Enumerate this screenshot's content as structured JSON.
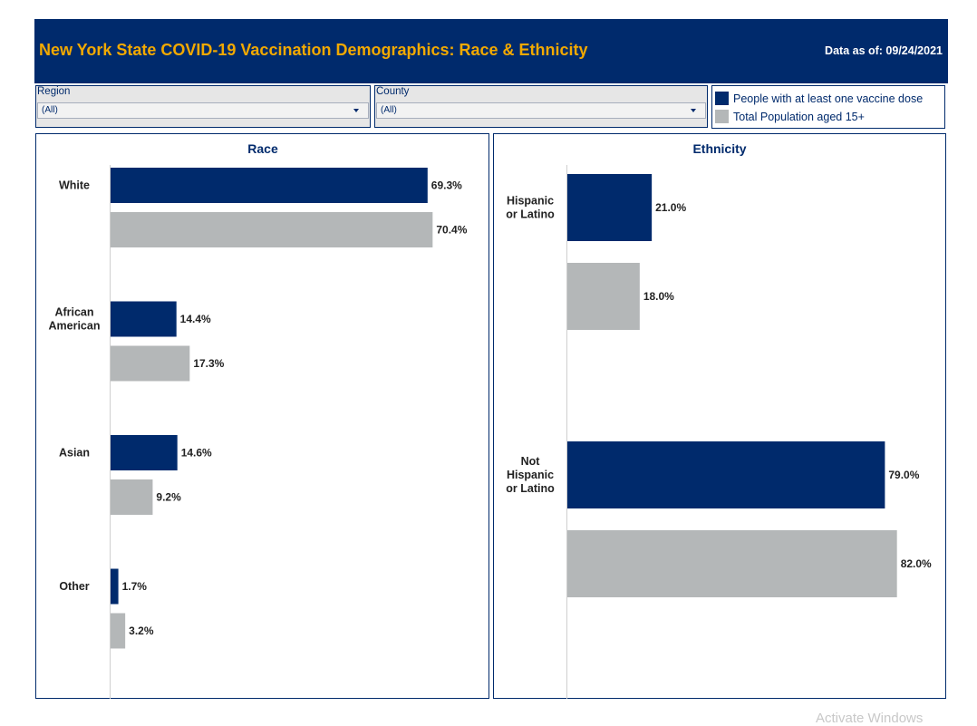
{
  "header": {
    "title": "New York State COVID-19 Vaccination Demographics: Race & Ethnicity",
    "date_text": "Data as of: 09/24/2021"
  },
  "filters": {
    "region": {
      "label": "Region",
      "value": "(All)"
    },
    "county": {
      "label": "County",
      "value": "(All)"
    }
  },
  "legend": [
    {
      "label": "People with at least one vaccine dose",
      "color": "#002a6c"
    },
    {
      "label": "Total Population aged 15+",
      "color": "#b4b7b8"
    }
  ],
  "colors": {
    "navy": "#002a6c",
    "gray": "#b4b7b8",
    "gold": "#f2a900"
  },
  "chart_data": [
    {
      "type": "bar",
      "orientation": "horizontal",
      "title": "Race",
      "categories": [
        "White",
        "African American",
        "Asian",
        "Other"
      ],
      "category_lines": [
        [
          "White"
        ],
        [
          "African",
          "American"
        ],
        [
          "Asian"
        ],
        [
          "Other"
        ]
      ],
      "series": [
        {
          "name": "People with at least one vaccine dose",
          "values": [
            69.3,
            14.4,
            14.6,
            1.7
          ],
          "color": "#002a6c"
        },
        {
          "name": "Total Population aged 15+",
          "values": [
            70.4,
            17.3,
            9.2,
            3.2
          ],
          "color": "#b4b7b8"
        }
      ],
      "value_suffix": "%",
      "xlim": [
        0,
        80
      ]
    },
    {
      "type": "bar",
      "orientation": "horizontal",
      "title": "Ethnicity",
      "categories": [
        "Hispanic or Latino",
        "Not Hispanic or Latino"
      ],
      "category_lines": [
        [
          "Hispanic",
          "or Latino"
        ],
        [
          "Not",
          "Hispanic",
          "or Latino"
        ]
      ],
      "series": [
        {
          "name": "People with at least one vaccine dose",
          "values": [
            21.0,
            79.0
          ],
          "color": "#002a6c"
        },
        {
          "name": "Total Population aged 15+",
          "values": [
            18.0,
            82.0
          ],
          "color": "#b4b7b8"
        }
      ],
      "value_suffix": "%",
      "xlim": [
        0,
        88
      ]
    }
  ],
  "watermark": "Activate Windows"
}
